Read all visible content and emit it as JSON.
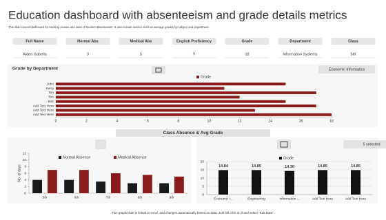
{
  "header": {
    "title": "Education dashboard with absenteeism and grade details metrics",
    "subtitle": "This slide covers dashboard for tracking causes and rates of student absenteeism. It also include metrics such as average grades by subject and department."
  },
  "table": {
    "columns": [
      "Full Name",
      "Normal Abs",
      "Medical Abs",
      "English Proficiency",
      "Grade",
      "Department",
      "Class"
    ],
    "rows": [
      [
        "Aiden Isabella",
        3,
        5,
        "Y",
        18,
        "Information Systems",
        "5th"
      ]
    ]
  },
  "section_title": "Class Absence & Avg Grade",
  "footer": "This graph/chart is linked to excel, and changes automatically based on data. Just left click on it and select “Edit Data”.",
  "chart_data": [
    {
      "type": "hbar",
      "title": "Grade by Department",
      "button": "Economic Informatics",
      "categories": [
        "John",
        "Kerry",
        "Tim",
        "Tim",
        "Bob",
        "Add Text Here",
        "Add Text Here",
        "Add Text Here"
      ],
      "series": [
        {
          "name": "Grade",
          "color": "#8b1a1a",
          "values": [
            15,
            11,
            17,
            12,
            15,
            17,
            13,
            18
          ]
        }
      ],
      "xlim": [
        0,
        18
      ],
      "xticks": [
        0,
        2,
        4,
        6,
        8,
        10,
        12,
        14,
        16,
        18
      ]
    },
    {
      "type": "bar",
      "ylabel": "No. of days",
      "categories": [
        "5th",
        "6th",
        "7th",
        "8th",
        "9th"
      ],
      "series": [
        {
          "name": "Normal Absence",
          "color": "#1a1a1a",
          "values": [
            4,
            4,
            3.5,
            3,
            3
          ]
        },
        {
          "name": "Medical Absence",
          "color": "#8b1a1a",
          "values": [
            7,
            7,
            6,
            5.5,
            5
          ]
        }
      ],
      "ylim": [
        0,
        12
      ],
      "yticks": [
        0,
        2,
        4,
        6,
        8,
        10,
        12
      ]
    },
    {
      "type": "bar",
      "button": "5 selected",
      "categories": [
        "Economic I...",
        "Engineering",
        "Information ...",
        "Add Text Here",
        "Add Text Here"
      ],
      "series": [
        {
          "name": "Grade",
          "color": "#111111",
          "values": [
            14.84,
            14.85,
            14.3,
            14.85,
            14.85
          ],
          "value_labels": [
            "14.84",
            "14.85",
            "14.30",
            "14.85",
            "14.85"
          ]
        }
      ],
      "ylim": [
        0,
        20
      ],
      "yticks": [
        0,
        5,
        10,
        15,
        20
      ],
      "grid": true
    }
  ]
}
